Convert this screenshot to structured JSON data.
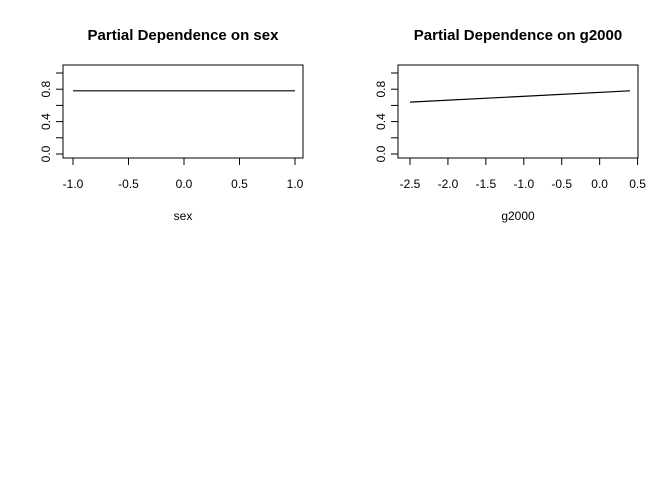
{
  "chart_data": [
    {
      "type": "line",
      "title": "Partial Dependence on sex",
      "xlabel": "sex",
      "ylabel": "",
      "xlim": [
        -1.0,
        1.0
      ],
      "ylim": [
        0.0,
        1.0
      ],
      "xticks": [
        -1.0,
        -0.5,
        0.0,
        0.5,
        1.0
      ],
      "xtick_labels": [
        "-1.0",
        "-0.5",
        "0.0",
        "0.5",
        "1.0"
      ],
      "yticks": [
        0.0,
        0.2,
        0.4,
        0.6,
        0.8,
        1.0
      ],
      "ytick_labels": [
        "0.0",
        "",
        "0.4",
        "",
        "0.8",
        ""
      ],
      "grid": false,
      "series": [
        {
          "x": [
            -1.0,
            1.0
          ],
          "y": [
            0.78,
            0.78
          ]
        }
      ]
    },
    {
      "type": "line",
      "title": "Partial Dependence on g2000",
      "xlabel": "g2000",
      "ylabel": "",
      "xlim": [
        -2.5,
        0.4
      ],
      "ylim": [
        0.0,
        1.0
      ],
      "xticks": [
        -2.5,
        -2.0,
        -1.5,
        -1.0,
        -0.5,
        0.0,
        0.5
      ],
      "xtick_labels": [
        "-2.5",
        "-2.0",
        "-1.5",
        "-1.0",
        "-0.5",
        "0.0",
        "0.5"
      ],
      "yticks": [
        0.0,
        0.2,
        0.4,
        0.6,
        0.8,
        1.0
      ],
      "ytick_labels": [
        "0.0",
        "",
        "0.4",
        "",
        "0.8",
        ""
      ],
      "grid": false,
      "series": [
        {
          "x": [
            -2.5,
            0.4
          ],
          "y": [
            0.64,
            0.78
          ]
        }
      ]
    }
  ]
}
